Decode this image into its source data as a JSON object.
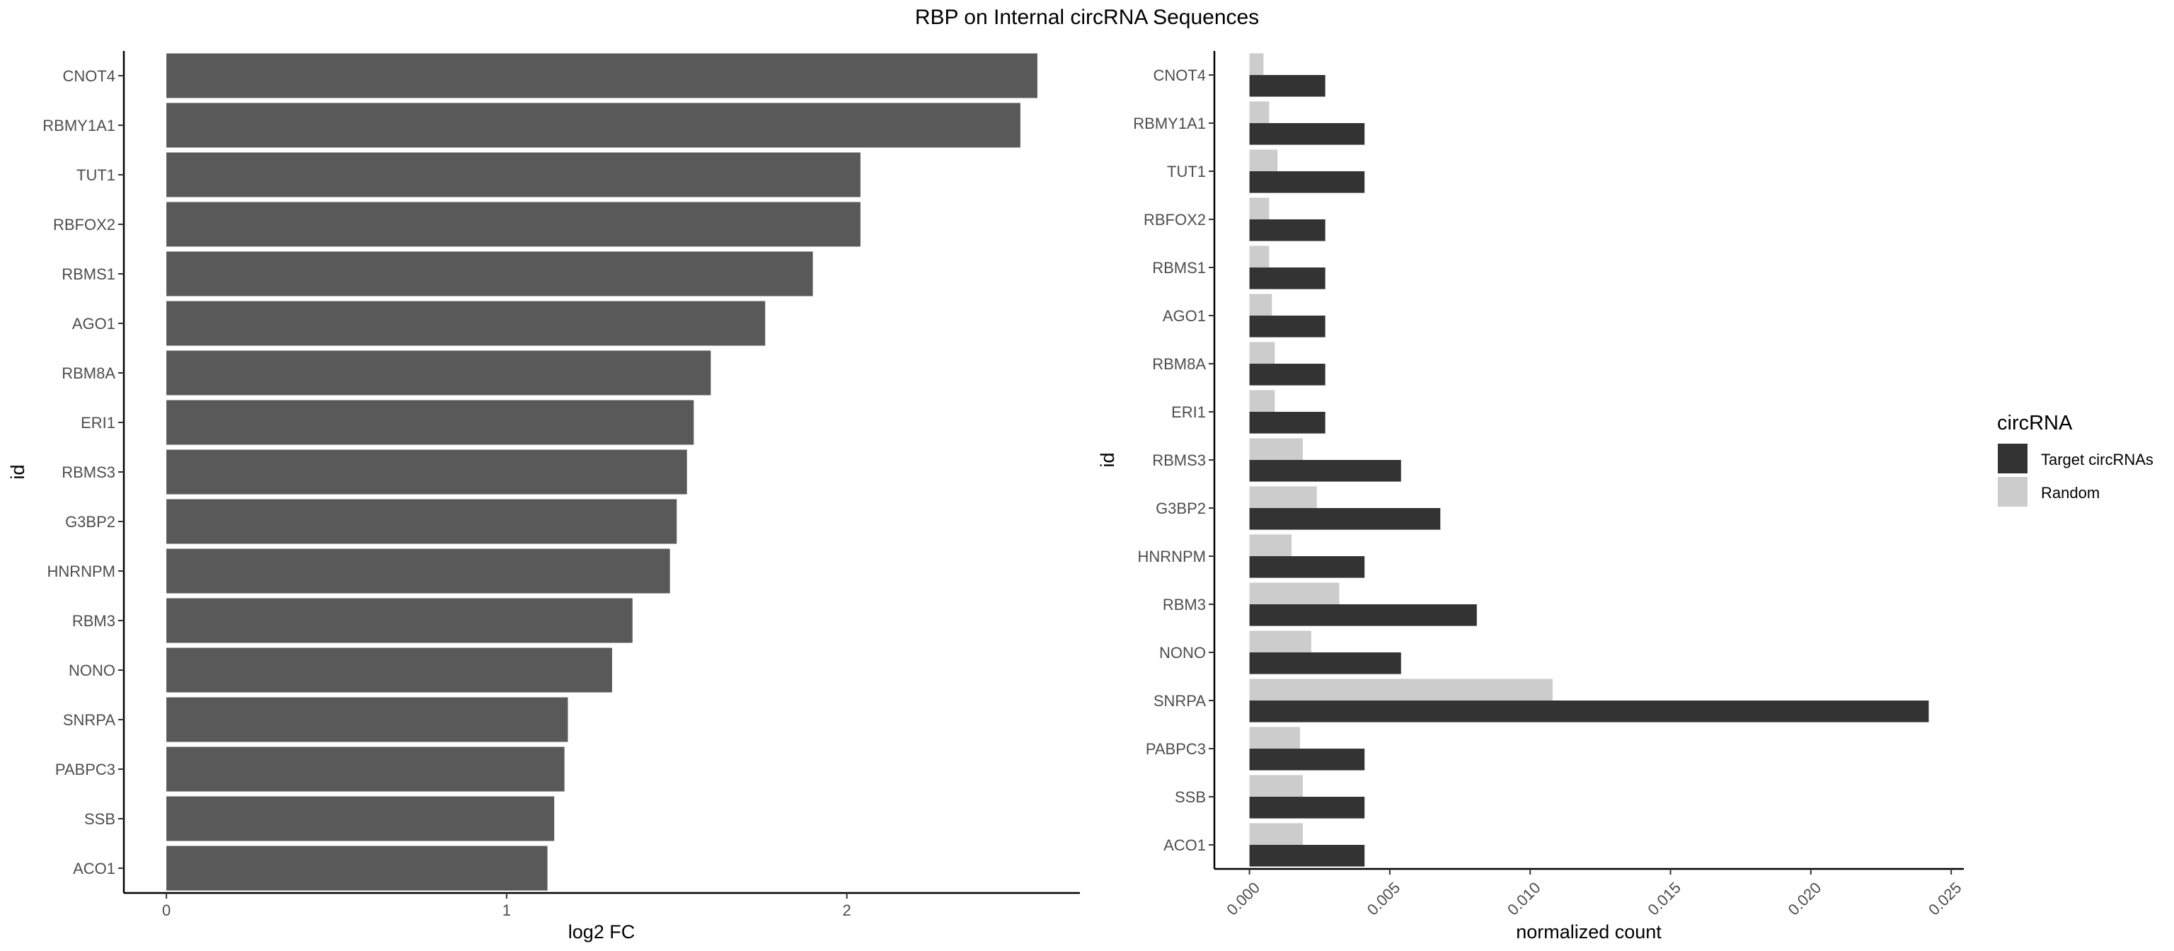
{
  "title": "RBP on Internal circRNA Sequences",
  "chart_data": [
    {
      "type": "bar",
      "orientation": "horizontal",
      "categories": [
        "CNOT4",
        "RBMY1A1",
        "TUT1",
        "RBFOX2",
        "RBMS1",
        "AGO1",
        "RBM8A",
        "ERI1",
        "RBMS3",
        "G3BP2",
        "HNRNPM",
        "RBM3",
        "NONO",
        "SNRPA",
        "PABPC3",
        "SSB",
        "ACO1"
      ],
      "values": [
        2.56,
        2.51,
        2.04,
        2.04,
        1.9,
        1.76,
        1.6,
        1.55,
        1.53,
        1.5,
        1.48,
        1.37,
        1.31,
        1.18,
        1.17,
        1.14,
        1.12
      ],
      "xlabel": "log2 FC",
      "ylabel": "id",
      "xticks": [
        0,
        1,
        2
      ],
      "xlim": [
        -0.125,
        2.685
      ],
      "color": "#595959",
      "grid": false
    },
    {
      "type": "bar",
      "orientation": "horizontal",
      "grouped": true,
      "categories": [
        "CNOT4",
        "RBMY1A1",
        "TUT1",
        "RBFOX2",
        "RBMS1",
        "AGO1",
        "RBM8A",
        "ERI1",
        "RBMS3",
        "G3BP2",
        "HNRNPM",
        "RBM3",
        "NONO",
        "SNRPA",
        "PABPC3",
        "SSB",
        "ACO1"
      ],
      "series": [
        {
          "name": "Target circRNAs",
          "color": "#333333",
          "values": [
            0.0027,
            0.0041,
            0.0041,
            0.0027,
            0.0027,
            0.0027,
            0.0027,
            0.0027,
            0.0054,
            0.0068,
            0.0041,
            0.0081,
            0.0054,
            0.0242,
            0.0041,
            0.0041,
            0.0041
          ]
        },
        {
          "name": "Random",
          "color": "#cccccc",
          "values": [
            0.0005,
            0.0007,
            0.001,
            0.0007,
            0.0007,
            0.0008,
            0.0009,
            0.0009,
            0.0019,
            0.0024,
            0.0015,
            0.0032,
            0.0022,
            0.0108,
            0.0018,
            0.0019,
            0.0019
          ]
        }
      ],
      "xlabel": "normalized count",
      "ylabel": "id",
      "xticks": [
        "0.000",
        "0.005",
        "0.010",
        "0.015",
        "0.020",
        "0.025"
      ],
      "xlim": [
        -0.00125,
        0.02545
      ],
      "legend": {
        "title": "circRNA",
        "position": "right"
      },
      "grid": false
    }
  ]
}
